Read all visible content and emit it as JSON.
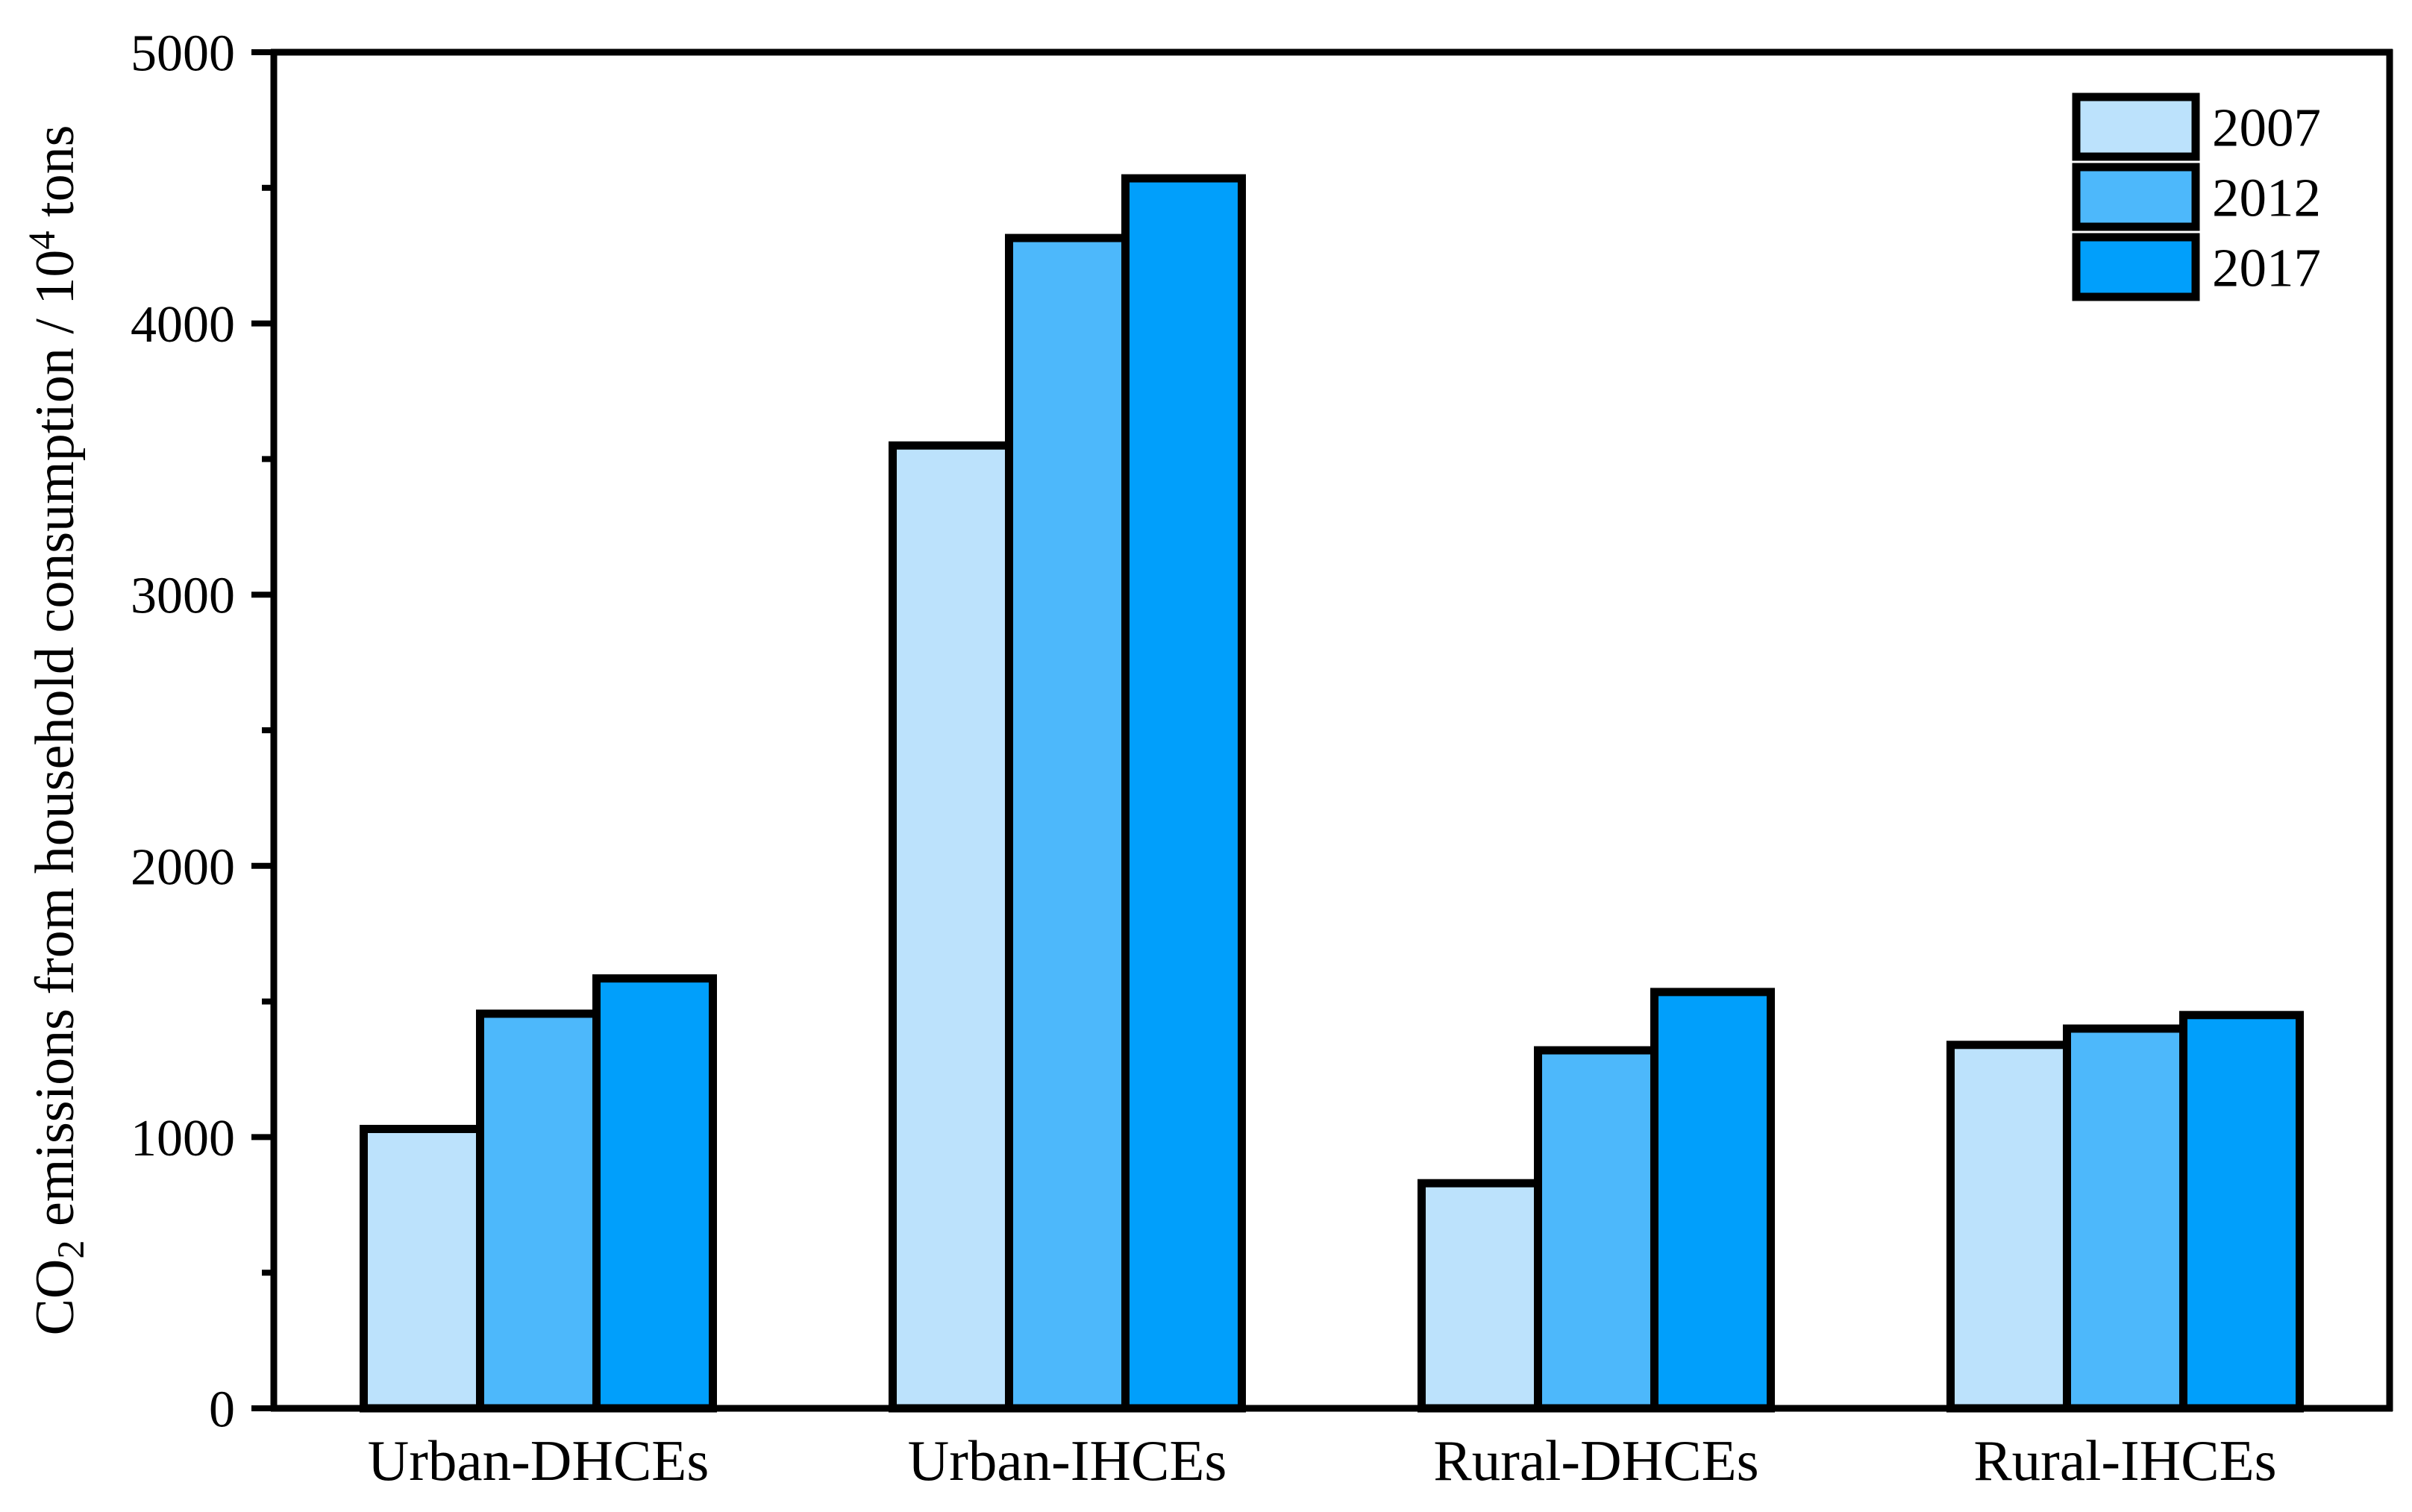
{
  "figure": {
    "background": "#FFFFFF",
    "text_color": "#000000",
    "axis_color": "#000000"
  },
  "chart_data": {
    "type": "bar",
    "title": "",
    "categories": [
      "Urban-DHCEs",
      "Urban-IHCEs",
      "Rural-DHCEs",
      "Rural-IHCEs"
    ],
    "series": [
      {
        "name": "2007",
        "color": "#BCE2FC",
        "values": [
          1030,
          3550,
          830,
          1340
        ]
      },
      {
        "name": "2012",
        "color": "#4DB8FB",
        "values": [
          1455,
          4315,
          1320,
          1400
        ]
      },
      {
        "name": "2017",
        "color": "#019FFB",
        "values": [
          1585,
          4535,
          1535,
          1450
        ]
      }
    ],
    "bar_outline_color": "#000000",
    "ylabel": {
      "prefix": "CO",
      "sub": "2",
      "mid": " emissions from household consumption / 10",
      "sup": "4",
      "suffix": " tons"
    },
    "xlabel": "",
    "ylim": [
      0,
      5000
    ],
    "y_major_ticks": [
      "0",
      "1000",
      "2000",
      "3000",
      "4000",
      "5000"
    ],
    "y_major_tick_values": [
      0,
      1000,
      2000,
      3000,
      4000,
      5000
    ],
    "y_minor_tick_values": [
      500,
      1500,
      2500,
      3500,
      4500
    ],
    "grid": false,
    "legend_position": "top-right",
    "legend_entries": [
      "2007",
      "2012",
      "2017"
    ]
  }
}
